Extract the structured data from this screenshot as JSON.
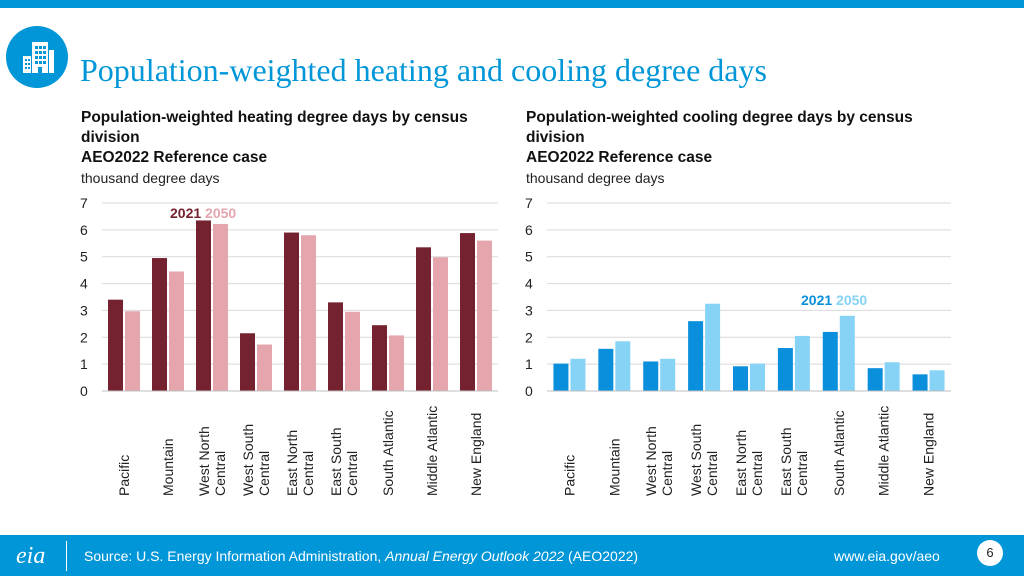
{
  "page": {
    "title": "Population-weighted heating and cooling degree days",
    "page_number": "6"
  },
  "icons": {
    "header": "building-icon",
    "footer_logo": "eia-logo"
  },
  "colors": {
    "brand": "#0096d7",
    "heating_2021": "#74222f",
    "heating_2050": "#e5a5ad",
    "cooling_2021": "#0a8fdc",
    "cooling_2050": "#86d3f6"
  },
  "footer": {
    "source_prefix": "Source: U.S. Energy Information Administration, ",
    "source_italic": "Annual Energy Outlook 2022",
    "source_suffix": " (AEO2022)",
    "url": "www.eia.gov/aeo",
    "logo_text": "eia"
  },
  "chart_data": [
    {
      "type": "bar",
      "title_line1": "Population-weighted heating degree days by census",
      "title_line2": "division",
      "subtitle": "AEO2022 Reference case",
      "ylabel": "thousand degree days",
      "ylim": [
        0,
        7
      ],
      "yticks": [
        "0",
        "1",
        "2",
        "3",
        "4",
        "5",
        "6",
        "7"
      ],
      "categories": [
        [
          "Pacific"
        ],
        [
          "Mountain"
        ],
        [
          "West North",
          "Central"
        ],
        [
          "West South",
          "Central"
        ],
        [
          "East North",
          "Central"
        ],
        [
          "East South",
          "Central"
        ],
        [
          "South Atlantic"
        ],
        [
          "Middle Atlantic"
        ],
        [
          "New England"
        ]
      ],
      "legend": [
        "2021",
        "2050"
      ],
      "series": [
        {
          "name": "2021",
          "values": [
            3.4,
            4.95,
            6.35,
            2.15,
            5.9,
            3.3,
            2.45,
            5.35,
            5.88
          ]
        },
        {
          "name": "2050",
          "values": [
            2.97,
            4.45,
            6.22,
            1.73,
            5.8,
            2.95,
            2.07,
            4.98,
            5.6
          ]
        }
      ]
    },
    {
      "type": "bar",
      "title_line1": "Population-weighted cooling degree days by census",
      "title_line2": "division",
      "subtitle": "AEO2022 Reference case",
      "ylabel": "thousand degree days",
      "ylim": [
        0,
        7
      ],
      "yticks": [
        "0",
        "1",
        "2",
        "3",
        "4",
        "5",
        "6",
        "7"
      ],
      "categories": [
        [
          "Pacific"
        ],
        [
          "Mountain"
        ],
        [
          "West North",
          "Central"
        ],
        [
          "West South",
          "Central"
        ],
        [
          "East North",
          "Central"
        ],
        [
          "East South",
          "Central"
        ],
        [
          "South Atlantic"
        ],
        [
          "Middle Atlantic"
        ],
        [
          "New England"
        ]
      ],
      "legend": [
        "2021",
        "2050"
      ],
      "series": [
        {
          "name": "2021",
          "values": [
            1.02,
            1.57,
            1.1,
            2.6,
            0.92,
            1.6,
            2.2,
            0.85,
            0.62
          ]
        },
        {
          "name": "2050",
          "values": [
            1.2,
            1.85,
            1.2,
            3.25,
            1.02,
            2.05,
            2.8,
            1.07,
            0.77
          ]
        }
      ]
    }
  ]
}
